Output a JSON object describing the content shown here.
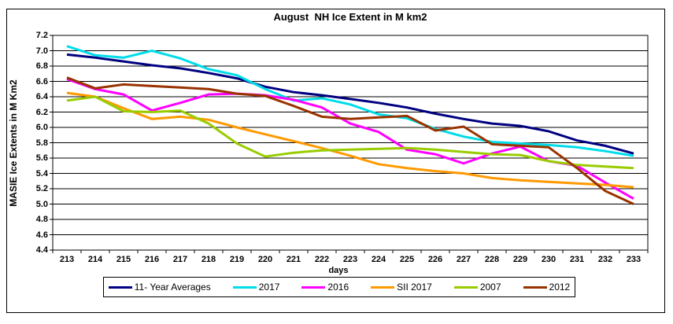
{
  "figure": {
    "title": "August  NH Ice Extent in M km2",
    "x_axis_label": "days",
    "y_axis_label": "MASIE Ice Extents in M Km2"
  },
  "chart_data": {
    "type": "line",
    "title": "August  NH Ice Extent in M km2",
    "xlabel": "days",
    "ylabel": "MASIE Ice Extents in M Km2",
    "x": [
      213,
      214,
      215,
      216,
      217,
      218,
      219,
      220,
      221,
      222,
      223,
      224,
      225,
      226,
      227,
      228,
      229,
      230,
      231,
      232,
      233
    ],
    "ylim": [
      4.4,
      7.2
    ],
    "y_tick_step": 0.2,
    "grid": "horizontal",
    "legend_position": "bottom",
    "series": [
      {
        "name": "11- Year Averages",
        "color": "#000080",
        "values": [
          6.95,
          6.91,
          6.86,
          6.81,
          6.77,
          6.71,
          6.64,
          6.53,
          6.46,
          6.42,
          6.37,
          6.32,
          6.26,
          6.18,
          6.11,
          6.05,
          6.02,
          5.95,
          5.83,
          5.76,
          5.66
        ]
      },
      {
        "name": "2017",
        "color": "#00DCE8",
        "values": [
          7.06,
          6.94,
          6.91,
          7.0,
          6.9,
          6.76,
          6.68,
          6.5,
          6.35,
          6.38,
          6.3,
          6.17,
          6.12,
          5.98,
          5.88,
          5.81,
          5.79,
          5.77,
          5.74,
          5.69,
          5.63
        ]
      },
      {
        "name": "2016",
        "color": "#FF00FF",
        "values": [
          6.63,
          6.5,
          6.43,
          6.22,
          6.32,
          6.43,
          6.44,
          6.42,
          6.36,
          6.26,
          6.05,
          5.94,
          5.71,
          5.65,
          5.53,
          5.66,
          5.75,
          5.56,
          5.5,
          5.28,
          5.07
        ]
      },
      {
        "name": "SII 2017",
        "color": "#FF9900",
        "values": [
          6.45,
          6.4,
          6.25,
          6.11,
          6.14,
          6.1,
          6.0,
          5.91,
          5.82,
          5.73,
          5.63,
          5.52,
          5.47,
          5.43,
          5.4,
          5.34,
          5.31,
          5.29,
          5.27,
          5.25,
          5.22
        ]
      },
      {
        "name": "2007",
        "color": "#99CC00",
        "values": [
          6.35,
          6.4,
          6.21,
          6.2,
          6.22,
          6.05,
          5.79,
          5.62,
          5.67,
          5.7,
          5.71,
          5.72,
          5.73,
          5.71,
          5.68,
          5.65,
          5.64,
          5.56,
          5.51,
          5.49,
          5.47
        ]
      },
      {
        "name": "2012",
        "color": "#993300",
        "values": [
          6.65,
          6.51,
          6.56,
          6.54,
          6.52,
          6.5,
          6.44,
          6.41,
          6.28,
          6.14,
          6.11,
          6.13,
          6.15,
          5.96,
          6.01,
          5.78,
          5.76,
          5.74,
          5.47,
          5.17,
          5.0
        ]
      }
    ]
  }
}
